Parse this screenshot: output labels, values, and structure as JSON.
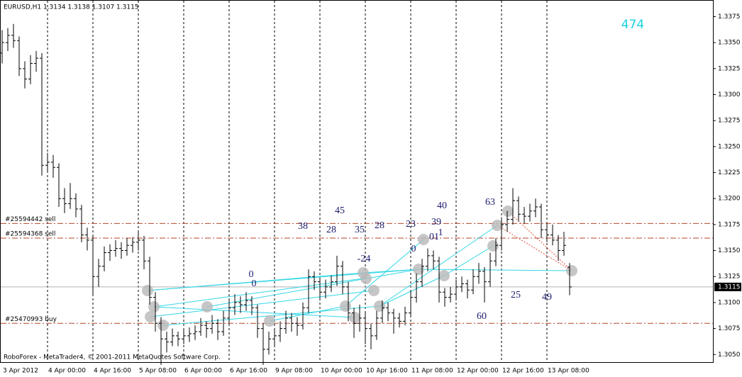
{
  "chart_data": {
    "type": "ohlc",
    "title": "EURUSD,H1  1.3134 1.3138 1.3107 1.3115",
    "footer": "RoboForex - MetaTrader4, © 2001-2011 MetaQuotes Software Corp.",
    "counter": "474",
    "categories": [
      "3 Apr 2012",
      null,
      null,
      null,
      null,
      null,
      null,
      null,
      "4 Apr 00:00",
      null,
      null,
      null,
      null,
      null,
      null,
      null,
      "4 Apr 16:00",
      null,
      null,
      null,
      null,
      null,
      null,
      null,
      "5 Apr 08:00",
      null,
      null,
      null,
      null,
      null,
      null,
      null,
      "6 Apr 00:00",
      null,
      null,
      null,
      null,
      null,
      null,
      null,
      "6 Apr 16:00",
      null,
      null,
      null,
      null,
      null,
      null,
      null,
      "9 Apr 08:00",
      null,
      null,
      null,
      null,
      null,
      null,
      null,
      "10 Apr 00:00",
      null,
      null,
      null,
      null,
      null,
      null,
      null,
      "10 Apr 16:00",
      null,
      null,
      null,
      null,
      null,
      null,
      null,
      "11 Apr 08:00",
      null,
      null,
      null,
      null,
      null,
      null,
      null,
      "12 Apr 00:00",
      null,
      null,
      null,
      null,
      null,
      null,
      null,
      "12 Apr 16:00",
      null,
      null,
      null,
      null,
      null,
      null,
      null,
      "13 Apr 08:00",
      null,
      null,
      null,
      null
    ],
    "ohlc": [
      [
        1.334,
        1.3362,
        1.333,
        1.335
      ],
      [
        1.335,
        1.3364,
        1.3342,
        1.3357
      ],
      [
        1.3357,
        1.3368,
        1.3345,
        1.3352
      ],
      [
        1.3352,
        1.3356,
        1.3318,
        1.3325
      ],
      [
        1.3325,
        1.3332,
        1.3306,
        1.3315
      ],
      [
        1.3315,
        1.3338,
        1.331,
        1.333
      ],
      [
        1.333,
        1.3342,
        1.3322,
        1.3335
      ],
      [
        1.3335,
        1.334,
        1.3222,
        1.3232
      ],
      [
        1.3232,
        1.3244,
        1.3225,
        1.3235
      ],
      [
        1.3235,
        1.3242,
        1.322,
        1.323
      ],
      [
        1.323,
        1.3234,
        1.3192,
        1.32
      ],
      [
        1.32,
        1.321,
        1.3186,
        1.3195
      ],
      [
        1.3195,
        1.3215,
        1.319,
        1.32
      ],
      [
        1.32,
        1.3205,
        1.3182,
        1.319
      ],
      [
        1.319,
        1.3194,
        1.3158,
        1.3165
      ],
      [
        1.3165,
        1.3172,
        1.315,
        1.316
      ],
      [
        1.316,
        1.3164,
        1.3108,
        1.3125
      ],
      [
        1.3125,
        1.3142,
        1.3115,
        1.3135
      ],
      [
        1.3135,
        1.3154,
        1.313,
        1.3148
      ],
      [
        1.3148,
        1.3156,
        1.314,
        1.315
      ],
      [
        1.315,
        1.316,
        1.3144,
        1.3152
      ],
      [
        1.3152,
        1.3158,
        1.3142,
        1.315
      ],
      [
        1.315,
        1.3162,
        1.3145,
        1.3155
      ],
      [
        1.3155,
        1.3163,
        1.3148,
        1.3158
      ],
      [
        1.3158,
        1.3168,
        1.315,
        1.316
      ],
      [
        1.316,
        1.3164,
        1.3132,
        1.314
      ],
      [
        1.314,
        1.3144,
        1.3098,
        1.3105
      ],
      [
        1.3105,
        1.311,
        1.3072,
        1.308
      ],
      [
        1.308,
        1.3086,
        1.304,
        1.3065
      ],
      [
        1.3065,
        1.3072,
        1.3052,
        1.3062
      ],
      [
        1.3062,
        1.3075,
        1.3058,
        1.3068
      ],
      [
        1.3068,
        1.3072,
        1.3058,
        1.3065
      ],
      [
        1.3065,
        1.3074,
        1.306,
        1.3068
      ],
      [
        1.3068,
        1.3076,
        1.3062,
        1.307
      ],
      [
        1.307,
        1.3078,
        1.3064,
        1.3072
      ],
      [
        1.3072,
        1.3085,
        1.3068,
        1.3078
      ],
      [
        1.3078,
        1.3082,
        1.3066,
        1.3075
      ],
      [
        1.3075,
        1.3088,
        1.307,
        1.308
      ],
      [
        1.308,
        1.3084,
        1.3064,
        1.3072
      ],
      [
        1.3072,
        1.3092,
        1.3068,
        1.3085
      ],
      [
        1.3085,
        1.3104,
        1.308,
        1.3095
      ],
      [
        1.3095,
        1.3108,
        1.3088,
        1.31
      ],
      [
        1.31,
        1.3106,
        1.309,
        1.3098
      ],
      [
        1.3098,
        1.311,
        1.3092,
        1.3102
      ],
      [
        1.3102,
        1.3106,
        1.3088,
        1.3095
      ],
      [
        1.3095,
        1.3098,
        1.3066,
        1.3075
      ],
      [
        1.3075,
        1.308,
        1.304,
        1.3055
      ],
      [
        1.3055,
        1.3072,
        1.305,
        1.3065
      ],
      [
        1.3065,
        1.3075,
        1.3058,
        1.3068
      ],
      [
        1.3068,
        1.3082,
        1.3062,
        1.3075
      ],
      [
        1.3075,
        1.3092,
        1.307,
        1.3085
      ],
      [
        1.3085,
        1.309,
        1.3072,
        1.308
      ],
      [
        1.308,
        1.3086,
        1.3068,
        1.3078
      ],
      [
        1.3078,
        1.31,
        1.3074,
        1.3095
      ],
      [
        1.3095,
        1.3132,
        1.309,
        1.3125
      ],
      [
        1.3125,
        1.313,
        1.3112,
        1.312
      ],
      [
        1.312,
        1.3124,
        1.3102,
        1.311
      ],
      [
        1.311,
        1.3122,
        1.3104,
        1.3115
      ],
      [
        1.3115,
        1.3126,
        1.311,
        1.312
      ],
      [
        1.312,
        1.3145,
        1.3116,
        1.3135
      ],
      [
        1.3135,
        1.314,
        1.3108,
        1.3115
      ],
      [
        1.3115,
        1.312,
        1.3082,
        1.309
      ],
      [
        1.309,
        1.3095,
        1.3066,
        1.308
      ],
      [
        1.308,
        1.3098,
        1.3072,
        1.3085
      ],
      [
        1.3085,
        1.309,
        1.306,
        1.3075
      ],
      [
        1.3075,
        1.308,
        1.3055,
        1.3068
      ],
      [
        1.3068,
        1.3092,
        1.3064,
        1.3085
      ],
      [
        1.3085,
        1.3102,
        1.308,
        1.3095
      ],
      [
        1.3095,
        1.31,
        1.3082,
        1.309
      ],
      [
        1.309,
        1.3094,
        1.307,
        1.3085
      ],
      [
        1.3085,
        1.309,
        1.3076,
        1.3082
      ],
      [
        1.3082,
        1.3096,
        1.3078,
        1.309
      ],
      [
        1.309,
        1.3112,
        1.3086,
        1.3105
      ],
      [
        1.3105,
        1.3128,
        1.31,
        1.312
      ],
      [
        1.312,
        1.3142,
        1.3115,
        1.3135
      ],
      [
        1.3135,
        1.3152,
        1.313,
        1.3145
      ],
      [
        1.3145,
        1.315,
        1.3132,
        1.314
      ],
      [
        1.314,
        1.3144,
        1.31,
        1.311
      ],
      [
        1.311,
        1.3114,
        1.3096,
        1.3105
      ],
      [
        1.3105,
        1.3115,
        1.31,
        1.3108
      ],
      [
        1.3108,
        1.3122,
        1.3104,
        1.3115
      ],
      [
        1.3115,
        1.3125,
        1.311,
        1.3118
      ],
      [
        1.3118,
        1.3122,
        1.3104,
        1.3112
      ],
      [
        1.3112,
        1.3132,
        1.3108,
        1.3125
      ],
      [
        1.3125,
        1.3138,
        1.3118,
        1.313
      ],
      [
        1.313,
        1.3134,
        1.31,
        1.312
      ],
      [
        1.312,
        1.3148,
        1.3115,
        1.314
      ],
      [
        1.314,
        1.3162,
        1.3135,
        1.3155
      ],
      [
        1.3155,
        1.3182,
        1.315,
        1.3175
      ],
      [
        1.3175,
        1.3188,
        1.3168,
        1.318
      ],
      [
        1.318,
        1.321,
        1.3175,
        1.3198
      ],
      [
        1.3198,
        1.3202,
        1.3178,
        1.3185
      ],
      [
        1.3185,
        1.3192,
        1.3176,
        1.3183
      ],
      [
        1.3183,
        1.3195,
        1.3178,
        1.3188
      ],
      [
        1.3188,
        1.32,
        1.3182,
        1.3192
      ],
      [
        1.3192,
        1.3195,
        1.3162,
        1.317
      ],
      [
        1.317,
        1.3176,
        1.3158,
        1.3165
      ],
      [
        1.3165,
        1.3175,
        1.3155,
        1.316
      ],
      [
        1.316,
        1.3165,
        1.314,
        1.315
      ],
      [
        1.315,
        1.3168,
        1.3145,
        1.3155
      ],
      [
        1.3134,
        1.3138,
        1.3107,
        1.3115
      ]
    ],
    "color": "#000000",
    "ylim": [
      1.3042,
      1.3391
    ],
    "yticks": [
      1.3375,
      {
        "value": 1.335,
        "label": "1.3350"
      },
      1.3325,
      {
        "value": 1.33,
        "label": "1.3300"
      },
      1.3275,
      {
        "value": 1.325,
        "label": "1.3250"
      },
      1.3225,
      {
        "value": 1.32,
        "label": "1.3200"
      },
      1.3175,
      {
        "value": 1.315,
        "label": "1.3150"
      },
      1.3125,
      {
        "value": 1.31,
        "label": "1.3100"
      },
      1.3075,
      {
        "value": 1.305,
        "label": "1.3050"
      }
    ],
    "grid": true,
    "current_price": 1.3115,
    "levels": [
      {
        "label": "#25594442 sell",
        "value": 1.3176
      },
      {
        "label": "#25594368 sell",
        "value": 1.3162
      },
      {
        "label": "#25470993 buy",
        "value": 1.308
      }
    ],
    "level_color": "#b5462e",
    "annotations": [
      "0",
      "0",
      "45",
      "38",
      "28",
      "35",
      "28",
      "23",
      "39",
      "40",
      "63",
      "0",
      "01",
      "1",
      "-24",
      "25",
      "49",
      "60"
    ]
  }
}
